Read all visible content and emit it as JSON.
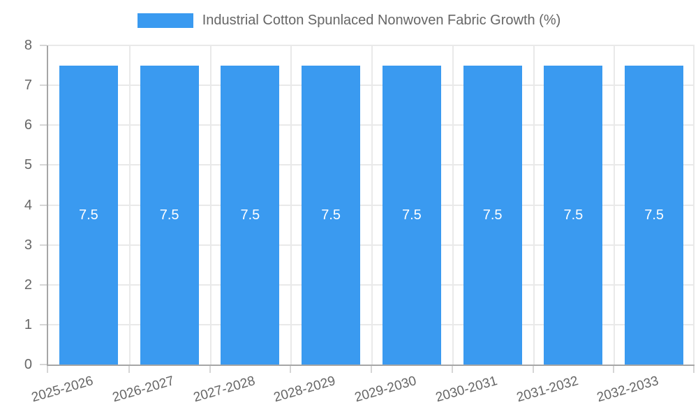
{
  "chart_data": {
    "type": "bar",
    "title": "Industrial Cotton Spunlaced Nonwoven Fabric Growth (%)",
    "legend": {
      "position": "top",
      "label": "Industrial Cotton Spunlaced Nonwoven Fabric Growth (%)"
    },
    "categories": [
      "2025-2026",
      "2026-2027",
      "2027-2028",
      "2028-2029",
      "2029-2030",
      "2030-2031",
      "2031-2032",
      "2032-2033"
    ],
    "series": [
      {
        "name": "Industrial Cotton Spunlaced Nonwoven Fabric Growth (%)",
        "values": [
          7.5,
          7.5,
          7.5,
          7.5,
          7.5,
          7.5,
          7.5,
          7.5
        ]
      }
    ],
    "bar_value_labels": [
      "7.5",
      "7.5",
      "7.5",
      "7.5",
      "7.5",
      "7.5",
      "7.5",
      "7.5"
    ],
    "xlabel": "",
    "ylabel": "",
    "ylim": [
      0,
      8
    ],
    "yticks": [
      "0",
      "1",
      "2",
      "3",
      "4",
      "5",
      "6",
      "7",
      "8"
    ],
    "grid": true,
    "x_label_rotation_deg": -16,
    "colors": {
      "bar": "#3a9af0",
      "text": "#666666",
      "grid": "#e9e9e9",
      "tick": "#d6d6d6",
      "axis": "#a6a6a6",
      "bar_label": "#ffffff",
      "background": "#ffffff"
    }
  }
}
